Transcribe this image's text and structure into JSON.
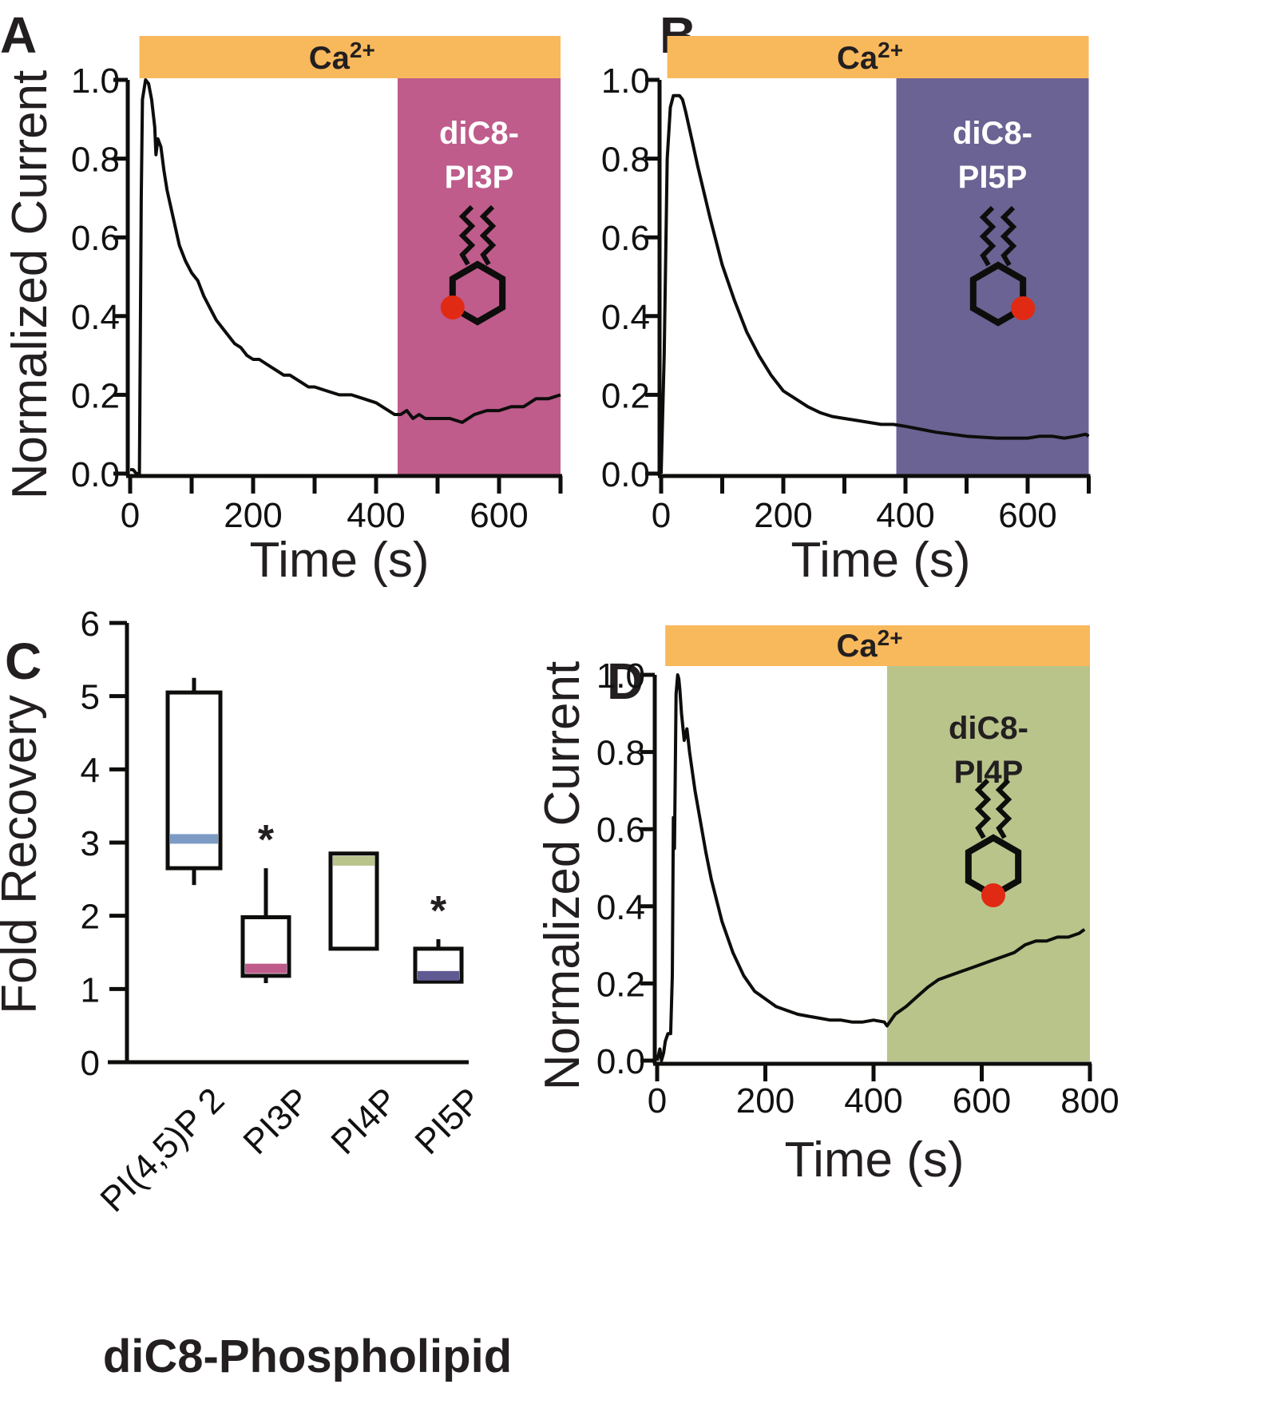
{
  "colors": {
    "calcium_bar": "#f8b95c",
    "pi3p": "#bf5c8c",
    "pi5p": "#6a6393",
    "pi4p": "#b8c48a",
    "pip2_median": "#7c9ac4",
    "pi3p_median": "#bf5c8c",
    "pi4p_median": "#b8c48a",
    "pi5p_median": "#5f5a92",
    "phosphate_dot": "#e12a14",
    "trace": "#0d0d0b"
  },
  "chart_data": [
    {
      "panel": "A",
      "type": "line",
      "xlabel": "Time (s)",
      "ylabel": "Normalized Current",
      "xlim": [
        0,
        700
      ],
      "ylim": [
        0,
        1.0
      ],
      "xticks": [
        0,
        100,
        200,
        300,
        400,
        500,
        600,
        700
      ],
      "xticklabels": [
        "0",
        "200",
        "400",
        "600"
      ],
      "xticklabel_values": [
        0,
        200,
        400,
        600
      ],
      "yticks": [
        0.0,
        0.2,
        0.4,
        0.6,
        0.8,
        1.0
      ],
      "yticklabels": [
        "0.0",
        "0.2",
        "0.4",
        "0.6",
        "0.8",
        "1.0"
      ],
      "bar_label": "Ca",
      "bar_superscript": "2+",
      "bar_range": [
        15,
        700
      ],
      "region_label_line1": "diC8-",
      "region_label_line2": "PI3P",
      "region_range": [
        435,
        700
      ],
      "region_color_key": "pi3p",
      "region_text_color": "#ffffff",
      "phosphate_position": "3",
      "series": [
        {
          "name": "Normalized current",
          "x": [
            0,
            5,
            10,
            15,
            18,
            20,
            25,
            30,
            35,
            40,
            42,
            45,
            50,
            55,
            60,
            70,
            80,
            90,
            100,
            110,
            120,
            130,
            140,
            150,
            160,
            170,
            180,
            190,
            200,
            210,
            220,
            230,
            240,
            250,
            260,
            270,
            280,
            290,
            300,
            320,
            340,
            360,
            380,
            400,
            420,
            430,
            440,
            450,
            460,
            470,
            480,
            500,
            520,
            540,
            560,
            580,
            600,
            620,
            640,
            660,
            680,
            700
          ],
          "y": [
            0.01,
            0.01,
            0.0,
            0.0,
            0.7,
            0.95,
            1.0,
            0.99,
            0.95,
            0.88,
            0.81,
            0.85,
            0.83,
            0.77,
            0.72,
            0.65,
            0.58,
            0.54,
            0.51,
            0.49,
            0.45,
            0.42,
            0.39,
            0.37,
            0.35,
            0.33,
            0.32,
            0.3,
            0.29,
            0.29,
            0.28,
            0.27,
            0.26,
            0.25,
            0.25,
            0.24,
            0.23,
            0.22,
            0.22,
            0.21,
            0.2,
            0.2,
            0.19,
            0.18,
            0.16,
            0.15,
            0.15,
            0.16,
            0.14,
            0.15,
            0.14,
            0.14,
            0.14,
            0.13,
            0.15,
            0.16,
            0.16,
            0.17,
            0.17,
            0.19,
            0.19,
            0.2
          ]
        }
      ]
    },
    {
      "panel": "B",
      "type": "line",
      "xlabel": "Time (s)",
      "ylabel": "",
      "xlim": [
        0,
        700
      ],
      "ylim": [
        0,
        1.0
      ],
      "xticks": [
        0,
        100,
        200,
        300,
        400,
        500,
        600,
        700
      ],
      "xticklabels": [
        "0",
        "200",
        "400",
        "600"
      ],
      "xticklabel_values": [
        0,
        200,
        400,
        600
      ],
      "yticks": [
        0.0,
        0.2,
        0.4,
        0.6,
        0.8,
        1.0
      ],
      "yticklabels": [
        "0.0",
        "0.2",
        "0.4",
        "0.6",
        "0.8",
        "1.0"
      ],
      "bar_label": "Ca",
      "bar_superscript": "2+",
      "bar_range": [
        10,
        700
      ],
      "region_label_line1": "diC8-",
      "region_label_line2": "PI5P",
      "region_range": [
        385,
        700
      ],
      "region_color_key": "pi5p",
      "region_text_color": "#ffffff",
      "phosphate_position": "5",
      "series": [
        {
          "name": "Normalized current",
          "x": [
            0,
            5,
            10,
            15,
            20,
            25,
            30,
            35,
            40,
            50,
            60,
            80,
            100,
            120,
            140,
            160,
            180,
            200,
            220,
            240,
            260,
            280,
            300,
            320,
            340,
            360,
            380,
            400,
            450,
            500,
            550,
            600,
            620,
            640,
            660,
            680,
            695,
            700
          ],
          "y": [
            0.0,
            0.3,
            0.8,
            0.93,
            0.96,
            0.96,
            0.96,
            0.95,
            0.92,
            0.85,
            0.78,
            0.65,
            0.53,
            0.44,
            0.36,
            0.3,
            0.25,
            0.21,
            0.19,
            0.17,
            0.155,
            0.145,
            0.14,
            0.135,
            0.13,
            0.125,
            0.125,
            0.12,
            0.105,
            0.095,
            0.09,
            0.09,
            0.095,
            0.095,
            0.09,
            0.095,
            0.1,
            0.095
          ]
        }
      ]
    },
    {
      "panel": "C",
      "type": "box",
      "title": "",
      "xlabel": "diC8-Phospholipid",
      "ylabel": "Fold Recovery",
      "ylim": [
        0,
        6
      ],
      "yticks": [
        0,
        1,
        2,
        3,
        4,
        5,
        6
      ],
      "yticklabels": [
        "0",
        "1",
        "2",
        "3",
        "4",
        "5",
        "6"
      ],
      "categories": [
        "PI(4,5)P 2",
        "PI3P",
        "PI4P",
        "PI5P"
      ],
      "boxes": [
        {
          "name": "PI(4,5)P2",
          "whisker_low": 2.42,
          "q1": 2.65,
          "median": 3.05,
          "q3": 5.05,
          "whisker_high": 5.25,
          "significant": false,
          "median_color_key": "pip2_median"
        },
        {
          "name": "PI3P",
          "whisker_low": 1.08,
          "q1": 1.18,
          "median": 1.28,
          "q3": 1.98,
          "whisker_high": 2.65,
          "significant": true,
          "median_color_key": "pi3p_median"
        },
        {
          "name": "PI4P",
          "whisker_low": 1.55,
          "q1": 1.55,
          "median": 2.75,
          "q3": 2.85,
          "whisker_high": 2.85,
          "significant": false,
          "median_color_key": "pi4p_median"
        },
        {
          "name": "PI5P",
          "whisker_low": 1.08,
          "q1": 1.1,
          "median": 1.18,
          "q3": 1.55,
          "whisker_high": 1.68,
          "significant": true,
          "median_color_key": "pi5p_median"
        }
      ],
      "significance_marker": "*"
    },
    {
      "panel": "D",
      "type": "line",
      "xlabel": "Time (s)",
      "ylabel": "Normalized Current",
      "xlim": [
        0,
        800
      ],
      "ylim": [
        0,
        1.0
      ],
      "xticks": [
        0,
        200,
        400,
        600,
        800
      ],
      "xticklabels": [
        "0",
        "200",
        "400",
        "600",
        "800"
      ],
      "xticklabel_values": [
        0,
        200,
        400,
        600,
        800
      ],
      "yticks": [
        0.0,
        0.2,
        0.4,
        0.6,
        0.8,
        1.0
      ],
      "yticklabels": [
        "0.0",
        "0.2",
        "0.4",
        "0.6",
        "0.8",
        "1.0"
      ],
      "bar_label": "Ca",
      "bar_superscript": "2+",
      "bar_range": [
        15,
        800
      ],
      "region_label_line1": "diC8-",
      "region_label_line2": "PI4P",
      "region_range": [
        425,
        800
      ],
      "region_color_key": "pi4p",
      "region_text_color": "#231f20",
      "phosphate_position": "4",
      "series": [
        {
          "name": "Normalized current",
          "x": [
            0,
            5,
            8,
            12,
            15,
            20,
            25,
            28,
            30,
            32,
            35,
            38,
            40,
            42,
            45,
            50,
            55,
            60,
            70,
            80,
            90,
            100,
            120,
            140,
            160,
            180,
            200,
            220,
            240,
            260,
            280,
            300,
            320,
            340,
            360,
            380,
            400,
            420,
            425,
            430,
            440,
            460,
            480,
            500,
            520,
            540,
            560,
            580,
            600,
            620,
            640,
            660,
            680,
            700,
            720,
            740,
            760,
            780,
            790
          ],
          "y": [
            0.0,
            0.03,
            0.0,
            0.02,
            0.05,
            0.07,
            0.07,
            0.22,
            0.63,
            0.55,
            0.95,
            1.0,
            0.99,
            0.96,
            0.9,
            0.83,
            0.86,
            0.8,
            0.7,
            0.62,
            0.54,
            0.47,
            0.36,
            0.28,
            0.22,
            0.18,
            0.16,
            0.14,
            0.13,
            0.12,
            0.115,
            0.11,
            0.105,
            0.105,
            0.1,
            0.1,
            0.105,
            0.1,
            0.09,
            0.1,
            0.12,
            0.14,
            0.165,
            0.19,
            0.21,
            0.22,
            0.23,
            0.24,
            0.25,
            0.26,
            0.27,
            0.28,
            0.3,
            0.31,
            0.31,
            0.32,
            0.32,
            0.33,
            0.34
          ]
        }
      ]
    }
  ],
  "panels": {
    "A": {
      "letter": "A"
    },
    "B": {
      "letter": "B"
    },
    "C": {
      "letter": "C"
    },
    "D": {
      "letter": "D"
    }
  }
}
